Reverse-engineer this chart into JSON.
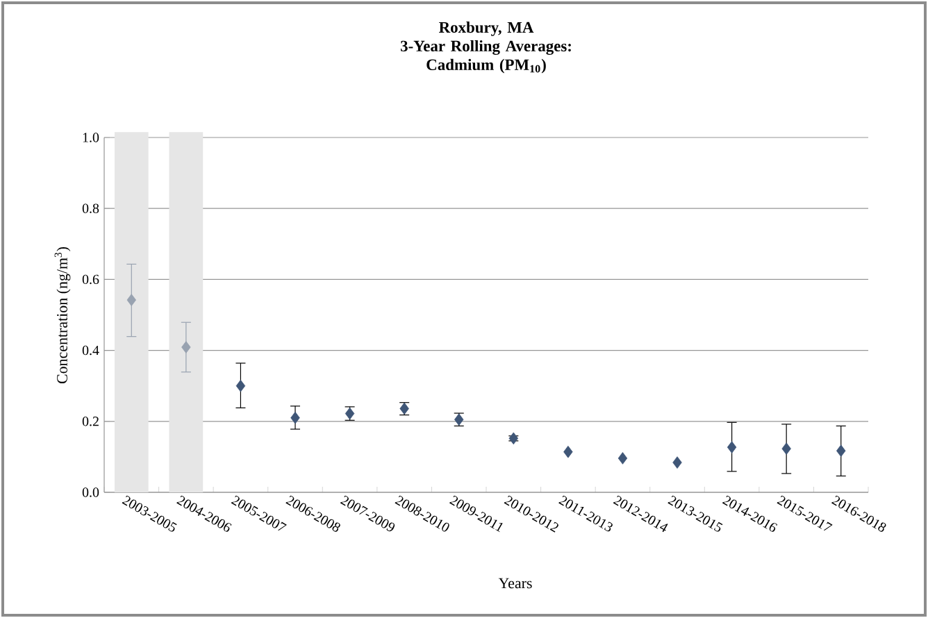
{
  "chart_data": {
    "type": "scatter",
    "title": "Roxbury, MA",
    "subtitle": "3-Year Rolling Averages: Cadmium (PM$_{10}$)",
    "xlabel": "Years",
    "ylabel": "Concentration (ng/m$^{3}$)",
    "categories": [
      "2003-2005",
      "2004-2006",
      "2005-2007",
      "2006-2008",
      "2007-2009",
      "2008-2010",
      "2009-2011",
      "2010-2012",
      "2011-2013",
      "2012-2014",
      "2013-2015",
      "2014-2016",
      "2015-2017",
      "2016-2018"
    ],
    "series": [
      {
        "color": "#98a2b0",
        "values": [
          0.542,
          0.409,
          null,
          null,
          null,
          null,
          null,
          null,
          null,
          null,
          null,
          null,
          null,
          null
        ],
        "errors": [
          [
            0.439,
            0.643
          ],
          [
            0.339,
            0.479
          ],
          null,
          null,
          null,
          null,
          null,
          null,
          null,
          null,
          null,
          null,
          null,
          null
        ]
      },
      {
        "color": "#3f5677",
        "values": [
          null,
          null,
          0.3,
          0.21,
          0.222,
          0.236,
          0.205,
          0.152,
          0.114,
          0.096,
          0.084,
          0.127,
          0.123,
          0.117
        ],
        "errors": [
          null,
          null,
          [
            0.238,
            0.364
          ],
          [
            0.178,
            0.243
          ],
          [
            0.203,
            0.241
          ],
          [
            0.218,
            0.253
          ],
          [
            0.187,
            0.223
          ],
          [
            0.145,
            0.159
          ],
          null,
          null,
          null,
          [
            0.059,
            0.197
          ],
          [
            0.053,
            0.192
          ],
          [
            0.046,
            0.187
          ]
        ]
      }
    ],
    "bands": [
      {
        "axis": "x",
        "from": "2003-2005",
        "to": "2003-2005",
        "color": "#e6e6e6"
      },
      {
        "axis": "x",
        "from": "2004-2006",
        "to": "2004-2006",
        "color": "#e6e6e6"
      }
    ],
    "ylim": [
      0,
      1.0
    ],
    "yticks": [
      {
        "value": 0,
        "label": "0.0"
      },
      {
        "value": 0.2,
        "label": "0.2"
      },
      {
        "value": 0.4,
        "label": "0.4"
      },
      {
        "value": 0.6,
        "label": "0.6"
      },
      {
        "value": 0.8,
        "label": "0.8"
      },
      {
        "value": 1.0,
        "label": "1.0"
      }
    ],
    "grid": "y",
    "marker": "diamond"
  }
}
